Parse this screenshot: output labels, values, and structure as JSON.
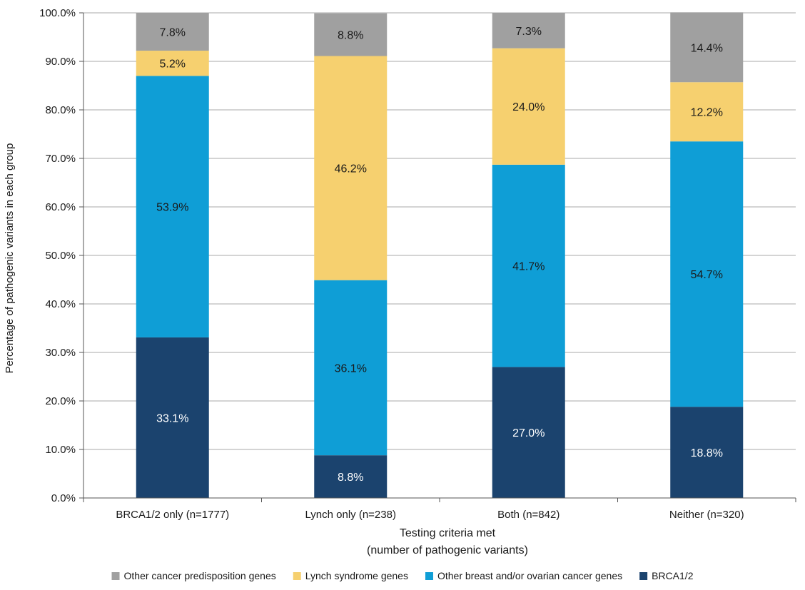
{
  "chart_data": {
    "type": "bar",
    "stacked": true,
    "title": "",
    "xlabel_lines": [
      "Testing criteria met",
      "(number of pathogenic variants)"
    ],
    "ylabel": "Percentage of pathogenic variants in each group",
    "ylim": [
      0,
      100
    ],
    "yticks": [
      "0.0%",
      "10.0%",
      "20.0%",
      "30.0%",
      "40.0%",
      "50.0%",
      "60.0%",
      "70.0%",
      "80.0%",
      "90.0%",
      "100.0%"
    ],
    "grid": true,
    "legend_position": "bottom",
    "categories": [
      "BRCA1/2 only (n=1777)",
      "Lynch only (n=238)",
      "Both (n=842)",
      "Neither (n=320)"
    ],
    "series": [
      {
        "name": "BRCA1/2",
        "color": "#1b436e",
        "label_color": "#ffffff",
        "values": [
          33.1,
          8.8,
          27.0,
          18.8
        ],
        "labels": [
          "33.1%",
          "8.8%",
          "27.0%",
          "18.8%"
        ]
      },
      {
        "name": "Other breast and/or ovarian cancer genes",
        "color": "#0f9ed6",
        "label_color": "#1a1a1a",
        "values": [
          53.9,
          36.1,
          41.7,
          54.7
        ],
        "labels": [
          "53.9%",
          "36.1%",
          "41.7%",
          "54.7%"
        ]
      },
      {
        "name": "Lynch syndrome genes",
        "color": "#f6d06f",
        "label_color": "#1a1a1a",
        "values": [
          5.2,
          46.2,
          24.0,
          12.2
        ],
        "labels": [
          "5.2%",
          "46.2%",
          "24.0%",
          "12.2%"
        ]
      },
      {
        "name": "Other cancer predisposition genes",
        "color": "#a0a0a0",
        "label_color": "#1a1a1a",
        "values": [
          7.8,
          8.8,
          7.3,
          14.4
        ],
        "labels": [
          "7.8%",
          "8.8%",
          "7.3%",
          "14.4%"
        ]
      }
    ],
    "legend_order": [
      3,
      2,
      1,
      0
    ]
  }
}
